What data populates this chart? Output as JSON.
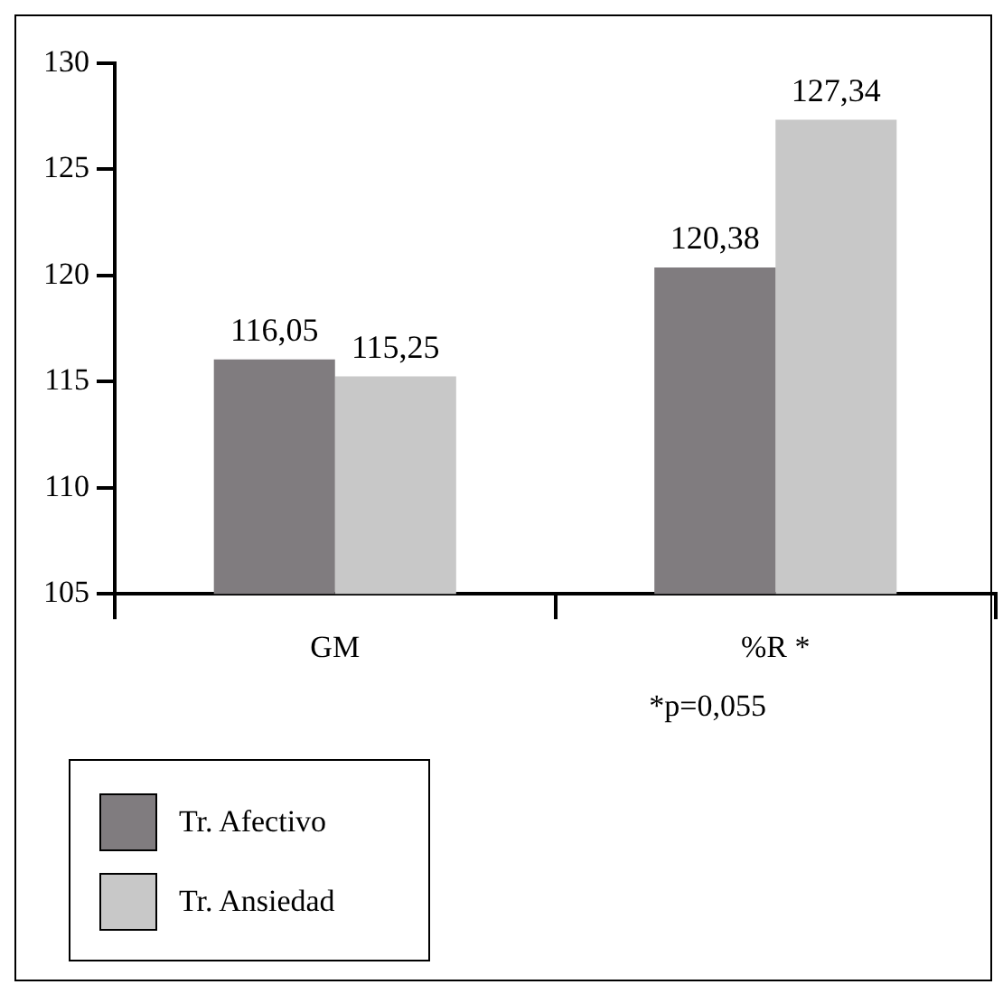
{
  "chart_data": {
    "type": "bar",
    "categories": [
      "GM",
      "%R *"
    ],
    "series": [
      {
        "name": "Tr. Afectivo",
        "color": "#807c7f",
        "values": [
          116.05,
          120.38
        ],
        "value_labels": [
          "116,05",
          "120,38"
        ]
      },
      {
        "name": "Tr. Ansiedad",
        "color": "#c8c8c8",
        "values": [
          115.25,
          127.34
        ],
        "value_labels": [
          "115,25",
          "127,34"
        ]
      }
    ],
    "ylim": [
      105,
      130
    ],
    "yticks": [
      105,
      110,
      115,
      120,
      125,
      130
    ],
    "grid": false,
    "legend": "bottom left",
    "annotations": [
      "*p=0,055"
    ]
  }
}
